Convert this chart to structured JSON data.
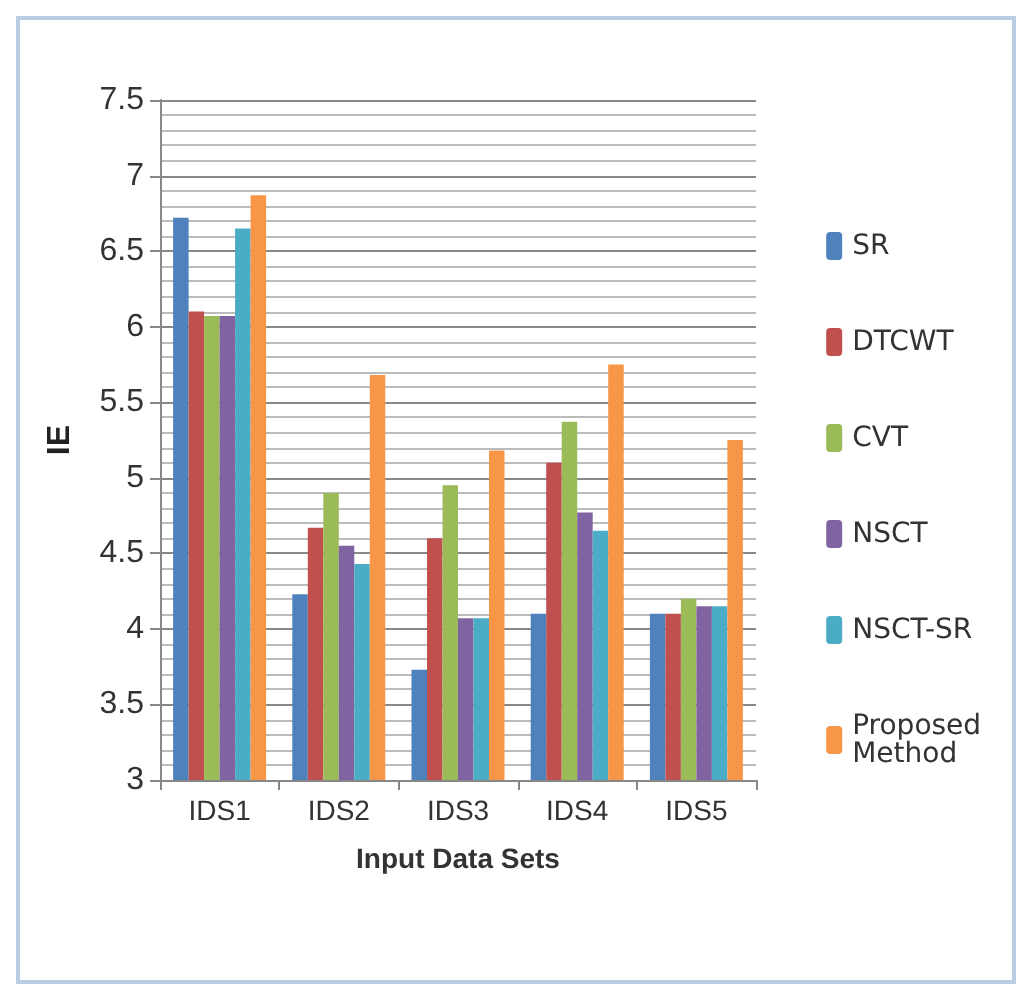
{
  "chart_data": {
    "type": "bar",
    "xlabel": "Input Data Sets",
    "ylabel": "IE",
    "categories": [
      "IDS1",
      "IDS2",
      "IDS3",
      "IDS4",
      "IDS5"
    ],
    "series": [
      {
        "name": "SR",
        "color": "#4f81bd",
        "values": [
          6.72,
          4.23,
          3.73,
          4.1,
          4.1
        ]
      },
      {
        "name": "DTCWT",
        "color": "#c0504d",
        "values": [
          6.1,
          4.67,
          4.6,
          5.1,
          4.1
        ]
      },
      {
        "name": "CVT",
        "color": "#9bbb59",
        "values": [
          6.07,
          4.9,
          4.95,
          5.37,
          4.2
        ]
      },
      {
        "name": "NSCT",
        "color": "#8064a2",
        "values": [
          6.07,
          4.55,
          4.07,
          4.77,
          4.15
        ]
      },
      {
        "name": "NSCT-SR",
        "color": "#4bacc6",
        "values": [
          6.65,
          4.43,
          4.07,
          4.65,
          4.15
        ]
      },
      {
        "name": "Proposed Method",
        "color": "#f79646",
        "values": [
          6.87,
          5.68,
          5.18,
          5.75,
          5.25
        ]
      }
    ],
    "ylim": [
      3,
      7.5
    ],
    "yticks": [
      3,
      3.5,
      4,
      4.5,
      5,
      5.5,
      6,
      6.5,
      7,
      7.5
    ],
    "grid": true,
    "legend": "right"
  }
}
